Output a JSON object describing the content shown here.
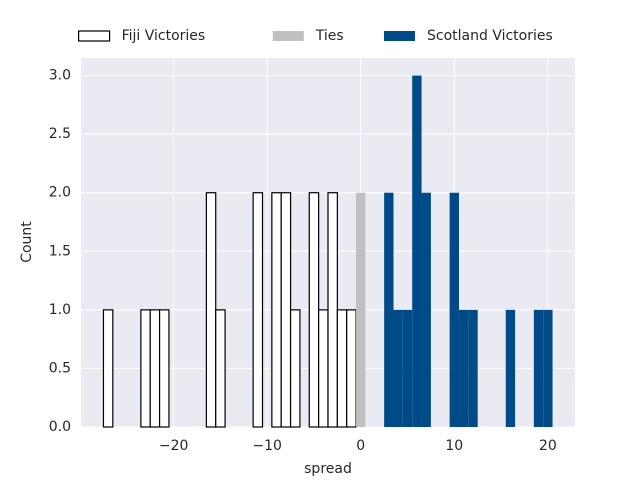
{
  "chart_data": {
    "type": "histogram",
    "xlabel": "spread",
    "ylabel": "Count",
    "xlim": [
      -29.9,
      22.9
    ],
    "ylim": [
      0,
      3.15
    ],
    "xticks": [
      {
        "value": -20,
        "label": "−20"
      },
      {
        "value": -10,
        "label": "−10"
      },
      0,
      10,
      20
    ],
    "yticks": [
      {
        "value": 0,
        "label": "0.0"
      },
      {
        "value": 0.5,
        "label": "0.5"
      },
      {
        "value": 1,
        "label": "1.0"
      },
      {
        "value": 1.5,
        "label": "1.5"
      },
      {
        "value": 2,
        "label": "2.0"
      },
      {
        "value": 2.5,
        "label": "2.5"
      },
      {
        "value": 3,
        "label": "3.0"
      }
    ],
    "grid": true,
    "legend": "upper center",
    "series": [
      {
        "name": "Fiji Victories",
        "color": "#ffffff",
        "edgecolor": "#000000",
        "bins": [
          -27.5,
          -26.5,
          -25.5,
          -24.5,
          -23.5,
          -22.5,
          -21.5,
          -20.5,
          -19.5,
          -18.5,
          -17.5,
          -16.5,
          -15.5,
          -14.5,
          -13.5,
          -12.5,
          -11.5,
          -10.5,
          -9.5,
          -8.5,
          -7.5,
          -6.5,
          -5.5,
          -4.5,
          -3.5,
          -2.5,
          -1.5,
          -0.5
        ],
        "values": [
          1,
          0,
          0,
          0,
          1,
          1,
          1,
          0,
          0,
          0,
          0,
          2,
          1,
          0,
          0,
          0,
          2,
          0,
          2,
          2,
          1,
          0,
          2,
          1,
          2,
          1,
          1
        ]
      },
      {
        "name": "Ties",
        "color": "#c0c0c0",
        "bins": [
          -0.5,
          0.5
        ],
        "values": [
          2
        ]
      },
      {
        "name": "Scotland Victories",
        "color": "#004b87",
        "bins": [
          2.5,
          3.5,
          4.5,
          5.5,
          6.5,
          7.5,
          8.5,
          9.5,
          10.5,
          11.5,
          12.5,
          13.5,
          14.5,
          15.5,
          16.5,
          17.5,
          18.5,
          19.5,
          20.5
        ],
        "values": [
          2,
          1,
          1,
          3,
          2,
          0,
          0,
          2,
          1,
          1,
          0,
          0,
          0,
          1,
          0,
          0,
          1,
          1
        ]
      }
    ]
  }
}
